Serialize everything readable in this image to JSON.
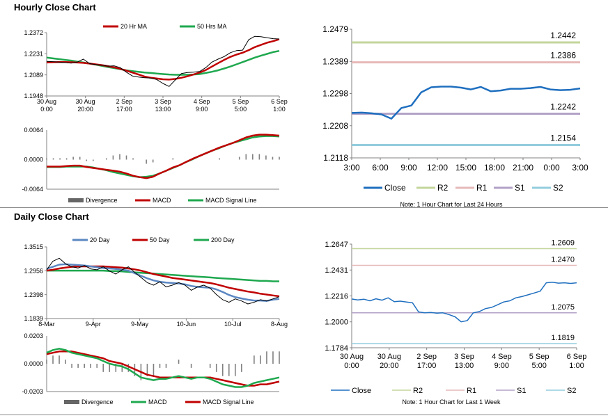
{
  "hourly": {
    "title": "Hourly Close Chart",
    "price_chart": {
      "type": "line",
      "legend": [
        "20 Hr MA",
        "50 Hrs MA"
      ],
      "y_ticks": [
        "1.2372",
        "1.2231",
        "1.2089",
        "1.1948"
      ],
      "ylim": [
        1.1948,
        1.2372
      ],
      "x_ticks": [
        [
          "30 Aug",
          "0:00"
        ],
        [
          "30 Aug",
          "20:00"
        ],
        [
          "2 Sep",
          "17:00"
        ],
        [
          "3 Sep",
          "13:00"
        ],
        [
          "4 Sep",
          "9:00"
        ],
        [
          "5 Sep",
          "5:00"
        ],
        [
          "6 Sep",
          "1:00"
        ]
      ],
      "series": [
        {
          "name": "Close",
          "color": "#000000",
          "values": [
            1.218,
            1.2178,
            1.2175,
            1.2172,
            1.2168,
            1.2175,
            1.2195,
            1.2165,
            1.2158,
            1.2155,
            1.2148,
            1.215,
            1.2138,
            1.2108,
            1.2082,
            1.2075,
            1.207,
            1.2068,
            1.2058,
            1.2032,
            1.2012,
            1.2055,
            1.2098,
            1.2105,
            1.2108,
            1.2112,
            1.2138,
            1.2175,
            1.2195,
            1.2212,
            1.2238,
            1.2252,
            1.2255,
            1.2325,
            1.2348,
            1.2345,
            1.2338,
            1.2332,
            1.233
          ]
        },
        {
          "name": "20 Hr MA",
          "color": "#c00000",
          "values": [
            1.2172,
            1.2174,
            1.2175,
            1.2175,
            1.2174,
            1.2172,
            1.217,
            1.2165,
            1.216,
            1.2155,
            1.2148,
            1.214,
            1.213,
            1.2118,
            1.2105,
            1.2092,
            1.2078,
            1.207,
            1.2065,
            1.206,
            1.2058,
            1.2062,
            1.207,
            1.208,
            1.2092,
            1.2105,
            1.2122,
            1.2145,
            1.2168,
            1.219,
            1.221,
            1.2225,
            1.2238,
            1.2255,
            1.2275,
            1.229,
            1.2305,
            1.2315,
            1.2328
          ]
        },
        {
          "name": "50 Hrs MA",
          "color": "#1fa84f",
          "values": [
            1.2205,
            1.22,
            1.2195,
            1.219,
            1.2185,
            1.2178,
            1.2172,
            1.2165,
            1.2158,
            1.215,
            1.2142,
            1.2135,
            1.2128,
            1.212,
            1.2115,
            1.211,
            1.2105,
            1.2102,
            1.2098,
            1.2095,
            1.2092,
            1.209,
            1.209,
            1.209,
            1.2092,
            1.2095,
            1.2102,
            1.211,
            1.212,
            1.2132,
            1.2145,
            1.216,
            1.2175,
            1.219,
            1.2205,
            1.2218,
            1.223,
            1.2242,
            1.225
          ]
        }
      ]
    },
    "macd_chart": {
      "type": "line",
      "y_ticks": [
        "0.0064",
        "0.0000",
        "-0.0064"
      ],
      "ylim": [
        -0.0064,
        0.0064
      ],
      "legend": [
        "Divergence",
        "MACD",
        "MACD Signal Line"
      ],
      "series": [
        {
          "name": "MACD",
          "color": "#c00000",
          "values": [
            -0.0015,
            -0.0015,
            -0.0015,
            -0.0014,
            -0.0013,
            -0.0013,
            -0.0016,
            -0.0018,
            -0.002,
            -0.0022,
            -0.0024,
            -0.0026,
            -0.003,
            -0.0035,
            -0.0038,
            -0.004,
            -0.0037,
            -0.003,
            -0.0024,
            -0.0017,
            -0.0012,
            -0.0005,
            0.0002,
            0.0008,
            0.0014,
            0.002,
            0.0026,
            0.0031,
            0.0036,
            0.0042,
            0.0048,
            0.0052,
            0.0054,
            0.0054,
            0.0053,
            0.0052
          ]
        },
        {
          "name": "MACD Signal Line",
          "color": "#1fa84f",
          "values": [
            -0.0016,
            -0.0016,
            -0.0016,
            -0.0015,
            -0.0015,
            -0.0015,
            -0.0015,
            -0.0017,
            -0.002,
            -0.0023,
            -0.0027,
            -0.003,
            -0.0033,
            -0.0036,
            -0.0038,
            -0.0037,
            -0.0035,
            -0.003,
            -0.0024,
            -0.0018,
            -0.0012,
            -0.0005,
            0.0001,
            0.0008,
            0.0014,
            0.002,
            0.0025,
            0.0031,
            0.0036,
            0.004,
            0.0044,
            0.0048,
            0.005,
            0.0051,
            0.0051,
            0.005
          ]
        }
      ]
    },
    "levels_chart": {
      "type": "line",
      "y_ticks": [
        "1.2479",
        "1.2389",
        "1.2298",
        "1.2208",
        "1.2118"
      ],
      "ylim": [
        1.2118,
        1.2479
      ],
      "x_ticks": [
        "3:00",
        "6:00",
        "9:00",
        "12:00",
        "15:00",
        "18:00",
        "21:00",
        "0:00",
        "3:00"
      ],
      "levels": [
        {
          "name": "R2",
          "value": 1.2442,
          "label": "1.2442",
          "color": "#c3d69b"
        },
        {
          "name": "R1",
          "value": 1.2386,
          "label": "1.2386",
          "color": "#e6b9b8"
        },
        {
          "name": "S1",
          "value": 1.2242,
          "label": "1.2242",
          "color": "#b3a2c7"
        },
        {
          "name": "S2",
          "value": 1.2154,
          "label": "1.2154",
          "color": "#93cddd"
        }
      ],
      "close": {
        "name": "Close",
        "color": "#1f6fbf",
        "values": [
          1.2244,
          1.2245,
          1.2243,
          1.224,
          1.2228,
          1.2258,
          1.2265,
          1.2302,
          1.2316,
          1.2318,
          1.2318,
          1.2315,
          1.231,
          1.2317,
          1.2305,
          1.2307,
          1.2312,
          1.2312,
          1.2314,
          1.2317,
          1.231,
          1.2308,
          1.2309,
          1.2313
        ]
      },
      "legend": [
        "Close",
        "R2",
        "R1",
        "S1",
        "S2"
      ],
      "note": "Note: 1 Hour Chart for Last 24 Hours"
    }
  },
  "daily": {
    "title": "Daily Close Chart",
    "price_chart": {
      "type": "line",
      "legend": [
        "20 Day",
        "50 Day",
        "200 Day"
      ],
      "y_ticks": [
        "1.3515",
        "1.2956",
        "1.2398",
        "1.1839"
      ],
      "ylim": [
        1.1839,
        1.3515
      ],
      "x_ticks": [
        "8-Mar",
        "9-Apr",
        "9-May",
        "10-Jun",
        "10-Jul",
        "8-Aug"
      ],
      "series": [
        {
          "name": "Close",
          "color": "#000000",
          "values": [
            1.298,
            1.318,
            1.325,
            1.312,
            1.305,
            1.302,
            1.308,
            1.3,
            1.298,
            1.305,
            1.295,
            1.288,
            1.298,
            1.305,
            1.292,
            1.28,
            1.268,
            1.262,
            1.27,
            1.258,
            1.262,
            1.268,
            1.262,
            1.25,
            1.258,
            1.262,
            1.255,
            1.24,
            1.228,
            1.222,
            1.23,
            1.225,
            1.218,
            1.222,
            1.228,
            1.225,
            1.23,
            1.235
          ]
        },
        {
          "name": "20 Day",
          "color": "#5b87c2",
          "values": [
            1.3,
            1.305,
            1.31,
            1.311,
            1.31,
            1.309,
            1.308,
            1.306,
            1.304,
            1.302,
            1.301,
            1.3,
            1.298,
            1.296,
            1.29,
            1.284,
            1.278,
            1.273,
            1.27,
            1.268,
            1.267,
            1.266,
            1.264,
            1.26,
            1.258,
            1.257,
            1.256,
            1.252,
            1.246,
            1.239,
            1.234,
            1.231,
            1.228,
            1.226,
            1.226,
            1.225,
            1.228,
            1.23
          ]
        },
        {
          "name": "50 Day",
          "color": "#c00000",
          "values": [
            1.296,
            1.298,
            1.301,
            1.303,
            1.305,
            1.306,
            1.306,
            1.306,
            1.306,
            1.306,
            1.305,
            1.304,
            1.303,
            1.301,
            1.299,
            1.296,
            1.292,
            1.288,
            1.285,
            1.282,
            1.279,
            1.277,
            1.275,
            1.273,
            1.271,
            1.269,
            1.267,
            1.264,
            1.26,
            1.256,
            1.253,
            1.25,
            1.247,
            1.245,
            1.242,
            1.24,
            1.238,
            1.236
          ]
        },
        {
          "name": "200 Day",
          "color": "#1fa84f",
          "values": [
            1.296,
            1.296,
            1.296,
            1.296,
            1.296,
            1.296,
            1.296,
            1.296,
            1.296,
            1.296,
            1.295,
            1.295,
            1.294,
            1.293,
            1.292,
            1.291,
            1.29,
            1.289,
            1.288,
            1.287,
            1.286,
            1.285,
            1.284,
            1.283,
            1.282,
            1.281,
            1.28,
            1.279,
            1.278,
            1.277,
            1.276,
            1.275,
            1.274,
            1.273,
            1.272,
            1.272,
            1.271,
            1.271
          ]
        }
      ]
    },
    "macd_chart": {
      "type": "line",
      "y_ticks": [
        "0.0203",
        "0.0000",
        "-0.0203"
      ],
      "ylim": [
        -0.0203,
        0.0203
      ],
      "legend": [
        "Divergence",
        "MACD",
        "MACD Signal Line"
      ],
      "series": [
        {
          "name": "MACD",
          "color": "#1fa84f",
          "values": [
            0.008,
            0.01,
            0.011,
            0.01,
            0.008,
            0.007,
            0.006,
            0.005,
            0.004,
            0.002,
            0.0,
            -0.001,
            -0.002,
            -0.004,
            -0.007,
            -0.01,
            -0.011,
            -0.012,
            -0.011,
            -0.011,
            -0.01,
            -0.009,
            -0.01,
            -0.011,
            -0.01,
            -0.01,
            -0.011,
            -0.013,
            -0.015,
            -0.016,
            -0.017,
            -0.017,
            -0.016,
            -0.014,
            -0.013,
            -0.012,
            -0.011,
            -0.01
          ]
        },
        {
          "name": "MACD Signal Line",
          "color": "#c00000",
          "values": [
            0.007,
            0.008,
            0.009,
            0.009,
            0.009,
            0.008,
            0.007,
            0.006,
            0.005,
            0.004,
            0.002,
            0.001,
            0.0,
            -0.002,
            -0.004,
            -0.006,
            -0.008,
            -0.009,
            -0.01,
            -0.01,
            -0.01,
            -0.01,
            -0.01,
            -0.01,
            -0.01,
            -0.01,
            -0.01,
            -0.011,
            -0.012,
            -0.013,
            -0.014,
            -0.015,
            -0.016,
            -0.016,
            -0.015,
            -0.015,
            -0.014,
            -0.013
          ]
        }
      ]
    },
    "levels_chart": {
      "type": "line",
      "y_ticks": [
        "1.2647",
        "1.2431",
        "1.2216",
        "1.2000",
        "1.1784"
      ],
      "ylim": [
        1.1784,
        1.2647
      ],
      "x_ticks": [
        [
          "30 Aug",
          "0:00"
        ],
        [
          "30 Aug",
          "20:00"
        ],
        [
          "2 Sep",
          "17:00"
        ],
        [
          "3 Sep",
          "13:00"
        ],
        [
          "4 Sep",
          "9:00"
        ],
        [
          "5 Sep",
          "5:00"
        ],
        [
          "6 Sep",
          "1:00"
        ]
      ],
      "levels": [
        {
          "name": "R2",
          "value": 1.2609,
          "label": "1.2609",
          "color": "#c3d69b"
        },
        {
          "name": "R1",
          "value": 1.247,
          "label": "1.2470",
          "color": "#e6b9b8"
        },
        {
          "name": "S1",
          "value": 1.2075,
          "label": "1.2075",
          "color": "#b3a2c7"
        },
        {
          "name": "S2",
          "value": 1.1819,
          "label": "1.1819",
          "color": "#93cddd"
        }
      ],
      "close": {
        "name": "Close",
        "color": "#1f6fbf",
        "values": [
          1.219,
          1.2182,
          1.2188,
          1.2175,
          1.2192,
          1.218,
          1.22,
          1.2168,
          1.2172,
          1.2165,
          1.2158,
          1.2082,
          1.2075,
          1.2078,
          1.2072,
          1.2075,
          1.206,
          1.2042,
          1.2,
          1.201,
          1.2075,
          1.2085,
          1.211,
          1.212,
          1.2142,
          1.2165,
          1.2175,
          1.22,
          1.221,
          1.2225,
          1.224,
          1.2255,
          1.2325,
          1.233,
          1.2322,
          1.2325,
          1.232,
          1.2325
        ]
      },
      "legend": [
        "Close",
        "R2",
        "R1",
        "S1",
        "S2"
      ],
      "note": "Note: 1 Hour Chart for Last 1 Week"
    }
  }
}
